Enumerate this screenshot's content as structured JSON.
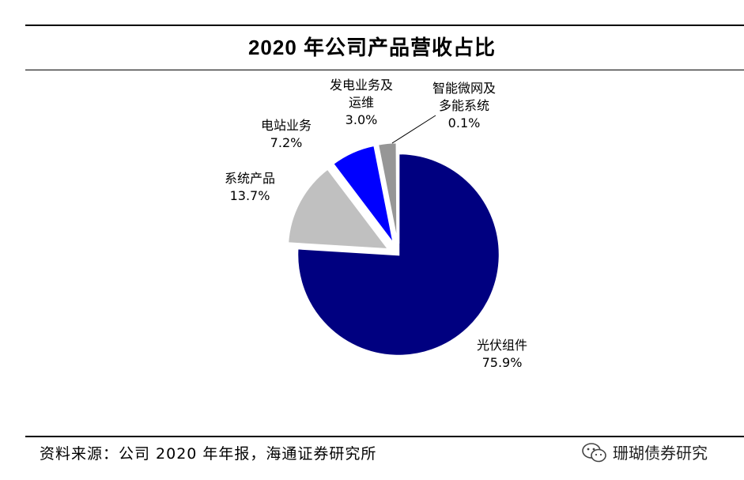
{
  "chart_data": {
    "type": "pie",
    "title": "2020 年公司产品营收占比",
    "slices": [
      {
        "name": "光伏组件",
        "value": 75.9,
        "label": "75.9%",
        "color": "#000080",
        "exploded": false
      },
      {
        "name": "系统产品",
        "value": 13.7,
        "label": "13.7%",
        "color": "#c0c0c0",
        "exploded": true
      },
      {
        "name": "电站业务",
        "value": 7.2,
        "label": "7.2%",
        "color": "#0000ff",
        "exploded": true
      },
      {
        "name": "发电业务及运维",
        "value": 3.0,
        "label": "3.0%",
        "color": "#969696",
        "exploded": true
      },
      {
        "name": "智能微网及多能系统",
        "value": 0.1,
        "label": "0.1%",
        "color": "#1a1aff",
        "exploded": true
      }
    ]
  },
  "labels": {
    "pv_modules": {
      "line1": "光伏组件",
      "pct": "75.9%"
    },
    "system_products": {
      "line1": "系统产品",
      "pct": "13.7%"
    },
    "power_station": {
      "line1": "电站业务",
      "pct": "7.2%"
    },
    "generation_om": {
      "line1": "发电业务及",
      "line2": "运维",
      "pct": "3.0%"
    },
    "microgrid": {
      "line1": "智能微网及",
      "line2": "多能系统",
      "pct": "0.1%"
    }
  },
  "footer": {
    "source": "资料来源：公司 2020 年年报，海通证券研究所"
  },
  "watermark": {
    "text": "珊瑚债券研究",
    "icon": "wechat-icon"
  }
}
